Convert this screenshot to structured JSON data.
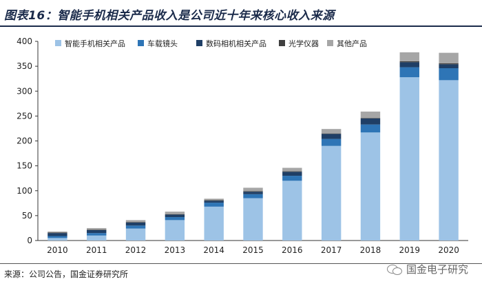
{
  "header": {
    "title": "图表16：智能手机相关产品收入是公司近十年来核心收入来源"
  },
  "footer": {
    "source": "来源：公司公告，国金证券研究所",
    "watermark": "国金电子研究"
  },
  "colors": {
    "智能手机相关产品": "#9dc3e6",
    "车载镜头": "#2e75b6",
    "数码相机相关产品": "#1f3f66",
    "光学仪器": "#3f3f3f",
    "其他产品": "#a6a6a6"
  },
  "chart_data": {
    "type": "bar",
    "stacked": true,
    "title": "",
    "xlabel": "",
    "ylabel": "",
    "ylim": [
      0,
      400
    ],
    "yticks": [
      0,
      50,
      100,
      150,
      200,
      250,
      300,
      350,
      400
    ],
    "grid": false,
    "legend": "top",
    "categories": [
      "2010",
      "2011",
      "2012",
      "2013",
      "2014",
      "2015",
      "2016",
      "2017",
      "2018",
      "2019",
      "2020"
    ],
    "series": [
      {
        "name": "智能手机相关产品",
        "values": [
          5,
          10,
          24,
          41,
          68,
          85,
          120,
          190,
          217,
          328,
          322
        ]
      },
      {
        "name": "车载镜头",
        "values": [
          4,
          5,
          6,
          6,
          8,
          8,
          10,
          14,
          16,
          20,
          24
        ]
      },
      {
        "name": "数码相机相关产品",
        "values": [
          6,
          6,
          6,
          5,
          4,
          5,
          8,
          10,
          12,
          10,
          8
        ]
      },
      {
        "name": "光学仪器",
        "values": [
          1,
          1,
          1,
          1,
          1,
          1,
          1,
          1,
          1,
          2,
          2
        ]
      },
      {
        "name": "其他产品",
        "values": [
          2,
          3,
          4,
          5,
          3,
          7,
          7,
          9,
          13,
          18,
          21
        ]
      }
    ]
  }
}
